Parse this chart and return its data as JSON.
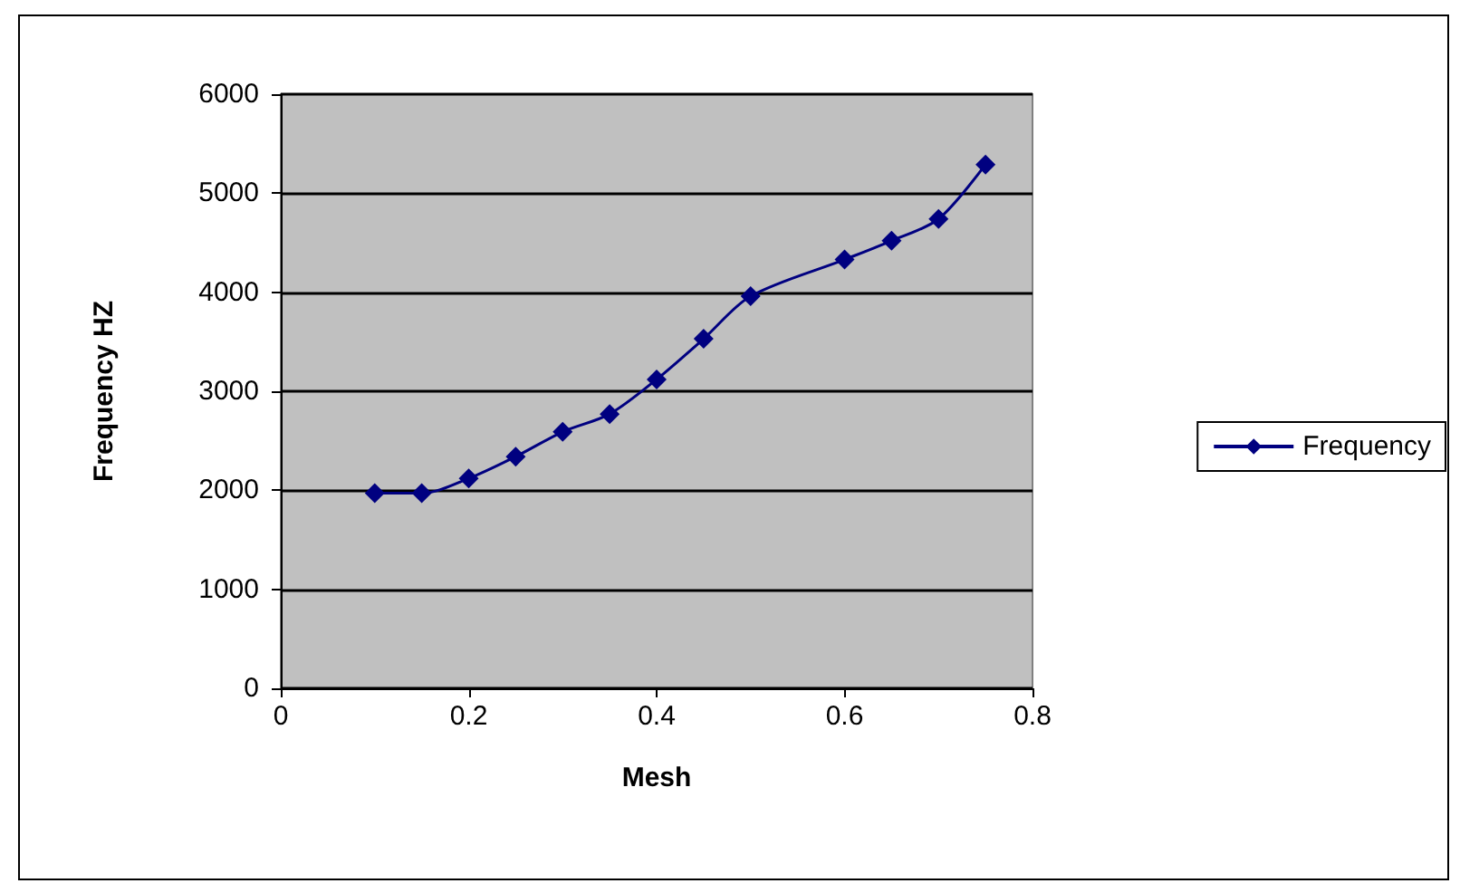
{
  "chart_data": {
    "type": "line",
    "xlabel": "Mesh",
    "ylabel": "Frequency HZ",
    "x": [
      0.1,
      0.15,
      0.2,
      0.25,
      0.3,
      0.35,
      0.4,
      0.45,
      0.5,
      0.6,
      0.65,
      0.7,
      0.75
    ],
    "series": [
      {
        "name": "Frequency",
        "color": "#000080",
        "values": [
          1970,
          1970,
          2120,
          2340,
          2590,
          2770,
          3120,
          3530,
          3960,
          4330,
          4520,
          4740,
          5290
        ]
      }
    ],
    "xlim": [
      0,
      0.8
    ],
    "xticks": [
      0,
      0.2,
      0.4,
      0.6,
      0.8
    ],
    "ylim": [
      0,
      6000
    ],
    "yticks": [
      0,
      1000,
      2000,
      3000,
      4000,
      5000,
      6000
    ],
    "grid": "y",
    "legend": "right",
    "marker": "diamond",
    "line_style": "solid"
  }
}
